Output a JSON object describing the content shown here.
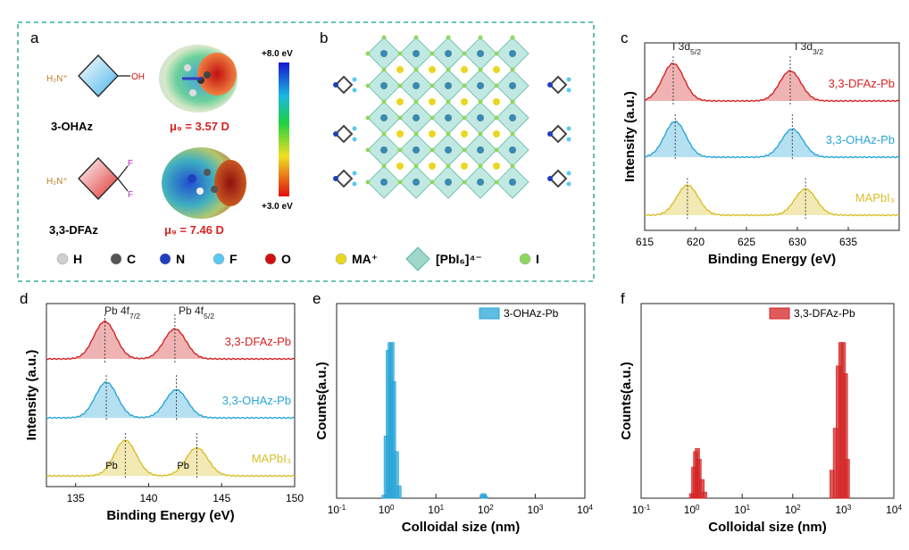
{
  "panels": {
    "a": {
      "letter": "a",
      "mol1_name": "3-OHAz",
      "mol2_name": "3,3-DFAz",
      "mol1_amine": "H₂N⁺",
      "mol2_amine": "H₂N⁺",
      "oh_label": "OH",
      "f_label": "F",
      "dipole1": "μ₉ = 3.57 D",
      "dipole2": "μ₉ = 7.46 D",
      "scale_top": "+8.0 eV",
      "scale_bottom": "+3.0 eV"
    },
    "b": {
      "letter": "b"
    },
    "legend": [
      {
        "sym": "H",
        "color": "#cfcfcf"
      },
      {
        "sym": "C",
        "color": "#555555"
      },
      {
        "sym": "N",
        "color": "#1f3fbf"
      },
      {
        "sym": "F",
        "color": "#5bc8f0"
      },
      {
        "sym": "O",
        "color": "#d01010"
      },
      {
        "sym": "MA⁺",
        "color": "#e8d820"
      },
      {
        "sym": "[PbI₆]⁴⁻",
        "color": "#9fd8c8"
      },
      {
        "sym": "I",
        "color": "#8fd860"
      }
    ]
  },
  "colors": {
    "dfaz": "#d42424",
    "ohaz": "#2aa6d8",
    "mapbi": "#d9bf2a",
    "frame": "#3aaea0"
  },
  "chart_data": [
    {
      "panel": "c",
      "type": "line",
      "title": "",
      "xlabel": "Binding Energy (eV)",
      "ylabel": "Intensity (a.u.)",
      "xlim": [
        615,
        640
      ],
      "xticks": [
        615,
        620,
        625,
        630,
        635
      ],
      "series": [
        {
          "name": "3,3-DFAz-Pb",
          "peaks": [
            617.8,
            629.3
          ],
          "amps": [
            1.0,
            0.8
          ]
        },
        {
          "name": "3,3-OHAz-Pb",
          "peaks": [
            618.0,
            629.5
          ],
          "amps": [
            0.95,
            0.75
          ]
        },
        {
          "name": "MAPbI₃",
          "peaks": [
            619.2,
            630.8
          ],
          "amps": [
            0.8,
            0.7
          ]
        }
      ],
      "annotations": [
        "I 3d5/2",
        "I 3d3/2"
      ]
    },
    {
      "panel": "d",
      "type": "line",
      "title": "",
      "xlabel": "Binding Energy (eV)",
      "ylabel": "Intensity (a.u.)",
      "xlim": [
        133,
        150
      ],
      "xticks": [
        135,
        140,
        145,
        150
      ],
      "series": [
        {
          "name": "3,3-DFAz-Pb",
          "peaks": [
            137.0,
            141.8
          ],
          "amps": [
            1.0,
            0.8
          ]
        },
        {
          "name": "3,3-OHAz-Pb",
          "peaks": [
            137.1,
            141.9
          ],
          "amps": [
            0.95,
            0.75
          ]
        },
        {
          "name": "MAPbI₃",
          "peaks": [
            138.4,
            143.3
          ],
          "amps": [
            0.95,
            0.75
          ]
        }
      ],
      "annotations": [
        "Pb 4f7/2",
        "Pb 4f5/2",
        "Pb⁰",
        "Pb⁰"
      ]
    },
    {
      "panel": "e",
      "type": "bar",
      "title": "",
      "xlabel": "Colloidal size (nm)",
      "ylabel": "Counts(a.u.)",
      "xscale": "log",
      "xlim": [
        0.1,
        10000
      ],
      "legend": "3-OHAz-Pb",
      "x": [
        0.9,
        1.0,
        1.1,
        1.2,
        1.3,
        1.4,
        1.6,
        1.8,
        85,
        90,
        95,
        100
      ],
      "values": [
        2,
        40,
        95,
        100,
        100,
        75,
        30,
        8,
        2,
        3,
        2,
        1
      ]
    },
    {
      "panel": "f",
      "type": "bar",
      "title": "",
      "xlabel": "Colloidal size (nm)",
      "ylabel": "Counts(a.u.)",
      "xscale": "log",
      "xlim": [
        0.1,
        10000
      ],
      "legend": "3,3-DFAz-Pb",
      "x": [
        1.0,
        1.1,
        1.2,
        1.3,
        1.4,
        1.6,
        1.8,
        600,
        700,
        800,
        900,
        1000,
        1100,
        1200
      ],
      "values": [
        3,
        20,
        30,
        32,
        25,
        12,
        4,
        18,
        45,
        85,
        100,
        100,
        80,
        25
      ]
    }
  ]
}
